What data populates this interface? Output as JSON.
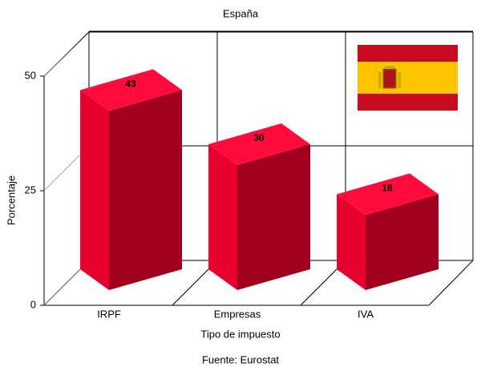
{
  "chart_data": {
    "type": "bar3d",
    "title": "España",
    "x_label": "Tipo de impuesto",
    "y_label": "Porcentaje",
    "source": "Fuente: Eurostat",
    "categories": [
      "IRPF",
      "Empresas",
      "IVA"
    ],
    "values": [
      43,
      30,
      18
    ],
    "colors": {
      "front": "#a0001e",
      "side": "#e8002c",
      "top": "#ff0a3c"
    },
    "ylim": [
      0,
      50
    ],
    "yticks": [
      0,
      25,
      50
    ],
    "grid": true
  }
}
